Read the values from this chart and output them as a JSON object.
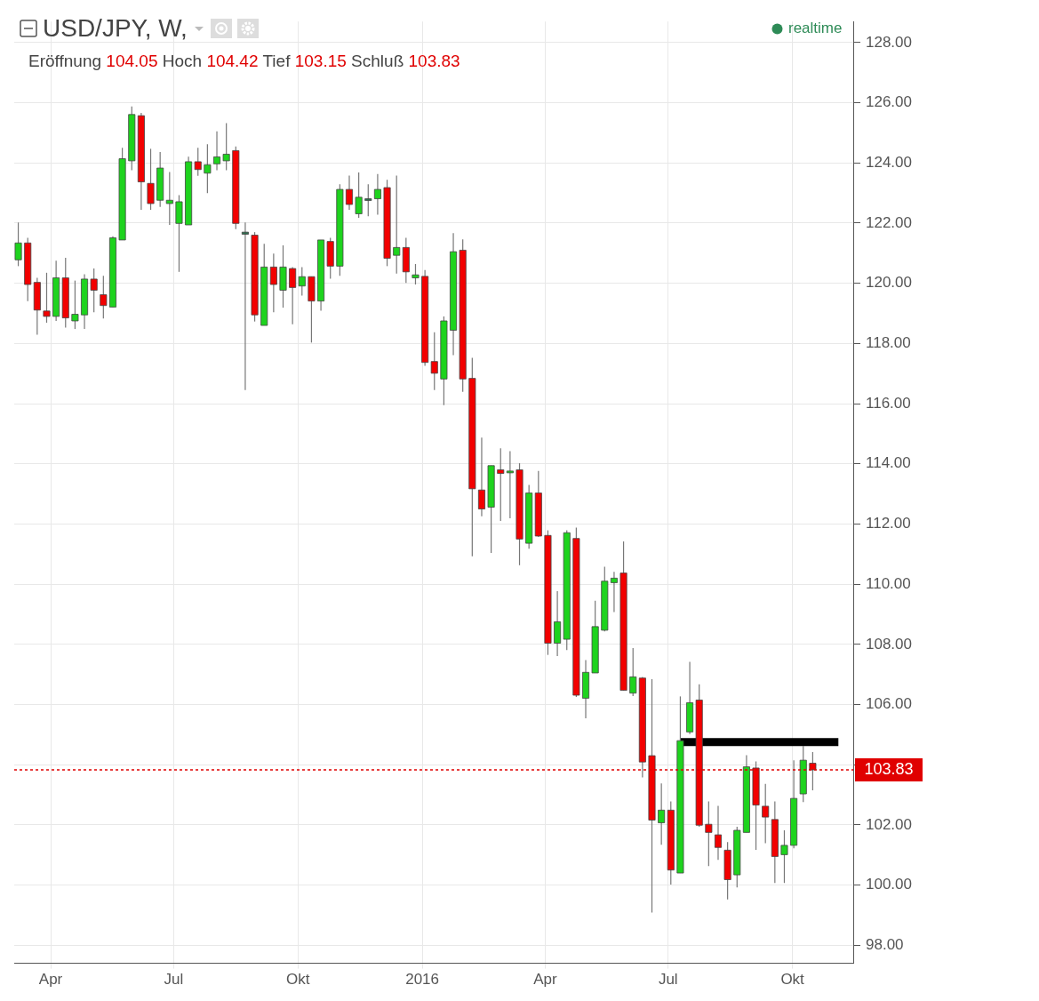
{
  "chart_data": {
    "type": "candlestick",
    "title": "USD/JPY, W,",
    "subtitle": "Eröffnung 104.05 Hoch 104.42 Tief 103.15 Schluß 103.83",
    "annotations": [
      "realtime"
    ],
    "x": [
      "2015-03-08",
      "2015-03-15",
      "2015-03-22",
      "2015-03-29",
      "2015-04-05",
      "2015-04-12",
      "2015-04-19",
      "2015-04-26",
      "2015-05-03",
      "2015-05-10",
      "2015-05-17",
      "2015-05-24",
      "2015-05-31",
      "2015-06-07",
      "2015-06-14",
      "2015-06-21",
      "2015-06-28",
      "2015-07-05",
      "2015-07-12",
      "2015-07-19",
      "2015-07-26",
      "2015-08-02",
      "2015-08-09",
      "2015-08-16",
      "2015-08-23",
      "2015-08-30",
      "2015-09-06",
      "2015-09-13",
      "2015-09-20",
      "2015-09-27",
      "2015-10-04",
      "2015-10-11",
      "2015-10-18",
      "2015-10-25",
      "2015-11-01",
      "2015-11-08",
      "2015-11-15",
      "2015-11-22",
      "2015-11-29",
      "2015-12-06",
      "2015-12-13",
      "2015-12-20",
      "2015-12-27",
      "2016-01-03",
      "2016-01-10",
      "2016-01-17",
      "2016-01-24",
      "2016-01-31",
      "2016-02-07",
      "2016-02-14",
      "2016-02-21",
      "2016-02-28",
      "2016-03-06",
      "2016-03-13",
      "2016-03-20",
      "2016-03-27",
      "2016-04-03",
      "2016-04-10",
      "2016-04-17",
      "2016-04-24",
      "2016-05-01",
      "2016-05-08",
      "2016-05-15",
      "2016-05-22",
      "2016-05-29",
      "2016-06-05",
      "2016-06-12",
      "2016-06-19",
      "2016-06-26",
      "2016-07-03",
      "2016-07-10",
      "2016-07-17",
      "2016-07-24",
      "2016-07-31",
      "2016-08-07",
      "2016-08-14",
      "2016-08-21",
      "2016-08-28",
      "2016-09-04",
      "2016-09-11",
      "2016-09-18",
      "2016-09-25",
      "2016-10-02",
      "2016-10-09",
      "2016-10-16"
    ],
    "ohlc": [
      [
        120.78,
        122.02,
        120.57,
        121.34
      ],
      [
        121.34,
        121.51,
        119.41,
        119.96
      ],
      [
        120.03,
        120.18,
        118.29,
        119.11
      ],
      [
        119.08,
        120.35,
        118.69,
        118.9
      ],
      [
        118.9,
        120.75,
        118.75,
        120.18
      ],
      [
        120.18,
        120.85,
        118.53,
        118.85
      ],
      [
        118.75,
        120.09,
        118.48,
        118.97
      ],
      [
        118.95,
        120.3,
        118.48,
        120.14
      ],
      [
        120.14,
        120.49,
        119.04,
        119.77
      ],
      [
        119.62,
        120.25,
        118.83,
        119.26
      ],
      [
        119.21,
        121.56,
        119.21,
        121.51
      ],
      [
        121.44,
        124.5,
        121.44,
        124.14
      ],
      [
        124.07,
        125.88,
        123.76,
        125.61
      ],
      [
        125.57,
        125.66,
        122.44,
        123.37
      ],
      [
        123.32,
        124.47,
        122.44,
        122.65
      ],
      [
        122.76,
        124.36,
        122.54,
        123.83
      ],
      [
        122.65,
        123.7,
        121.94,
        122.76
      ],
      [
        121.99,
        122.93,
        120.38,
        122.71
      ],
      [
        121.94,
        124.21,
        121.94,
        124.04
      ],
      [
        124.04,
        124.5,
        123.57,
        123.78
      ],
      [
        123.66,
        124.62,
        123.0,
        123.94
      ],
      [
        123.97,
        125.05,
        123.76,
        124.2
      ],
      [
        124.07,
        125.32,
        123.76,
        124.29
      ],
      [
        124.41,
        124.55,
        121.8,
        121.99
      ],
      [
        121.63,
        122.02,
        116.45,
        121.7
      ],
      [
        121.6,
        121.7,
        118.73,
        118.95
      ],
      [
        118.6,
        121.31,
        118.6,
        120.54
      ],
      [
        120.54,
        120.99,
        119.04,
        119.96
      ],
      [
        119.77,
        121.26,
        119.19,
        120.54
      ],
      [
        120.49,
        120.54,
        118.64,
        119.86
      ],
      [
        119.91,
        120.54,
        119.59,
        120.22
      ],
      [
        120.22,
        120.22,
        118.03,
        119.41
      ],
      [
        119.41,
        121.44,
        119.09,
        121.44
      ],
      [
        121.39,
        121.51,
        120.15,
        120.57
      ],
      [
        120.57,
        123.29,
        120.25,
        123.12
      ],
      [
        123.12,
        123.58,
        122.44,
        122.62
      ],
      [
        122.31,
        123.68,
        122.18,
        122.86
      ],
      [
        122.76,
        123.29,
        122.23,
        122.81
      ],
      [
        122.81,
        123.63,
        122.28,
        123.12
      ],
      [
        123.18,
        123.44,
        120.57,
        120.83
      ],
      [
        120.93,
        123.58,
        120.32,
        121.19
      ],
      [
        121.19,
        121.51,
        120.01,
        120.38
      ],
      [
        120.18,
        120.64,
        119.96,
        120.28
      ],
      [
        120.23,
        120.44,
        117.26,
        117.37
      ],
      [
        117.4,
        118.37,
        116.45,
        117.01
      ],
      [
        116.82,
        118.9,
        115.95,
        118.75
      ],
      [
        118.44,
        121.67,
        117.61,
        121.05
      ],
      [
        121.1,
        121.46,
        116.39,
        116.82
      ],
      [
        116.84,
        117.52,
        110.93,
        113.17
      ],
      [
        113.13,
        114.87,
        112.26,
        112.5
      ],
      [
        112.56,
        113.94,
        111.04,
        113.94
      ],
      [
        113.8,
        114.52,
        112.1,
        113.68
      ],
      [
        113.74,
        114.42,
        112.19,
        113.76
      ],
      [
        113.8,
        114.02,
        110.63,
        111.5
      ],
      [
        111.36,
        113.3,
        111.18,
        113.03
      ],
      [
        113.03,
        113.76,
        111.57,
        111.6
      ],
      [
        111.62,
        111.79,
        107.65,
        108.04
      ],
      [
        108.04,
        109.77,
        107.61,
        108.75
      ],
      [
        108.17,
        111.79,
        107.81,
        111.71
      ],
      [
        111.52,
        111.88,
        106.25,
        106.31
      ],
      [
        106.21,
        107.48,
        105.54,
        107.07
      ],
      [
        107.05,
        109.45,
        107.05,
        108.59
      ],
      [
        108.47,
        110.58,
        108.43,
        110.1
      ],
      [
        110.05,
        110.41,
        109.07,
        110.2
      ],
      [
        110.37,
        111.42,
        106.47,
        106.47
      ],
      [
        106.38,
        107.88,
        106.28,
        106.92
      ],
      [
        106.88,
        106.92,
        103.58,
        104.09
      ],
      [
        104.3,
        106.84,
        99.09,
        102.16
      ],
      [
        102.07,
        103.38,
        101.34,
        102.49
      ],
      [
        102.49,
        102.78,
        100.02,
        100.5
      ],
      [
        100.4,
        106.27,
        100.4,
        104.8
      ],
      [
        105.09,
        107.42,
        105.02,
        106.06
      ],
      [
        106.15,
        106.67,
        101.94,
        101.99
      ],
      [
        102.02,
        102.78,
        100.63,
        101.75
      ],
      [
        101.67,
        102.63,
        100.84,
        101.25
      ],
      [
        101.16,
        101.43,
        99.52,
        100.18
      ],
      [
        100.34,
        101.94,
        99.92,
        101.82
      ],
      [
        101.75,
        104.32,
        101.75,
        103.93
      ],
      [
        103.89,
        104.11,
        101.17,
        102.66
      ],
      [
        102.62,
        103.36,
        101.39,
        102.26
      ],
      [
        102.18,
        102.78,
        100.07,
        100.95
      ],
      [
        101.01,
        101.82,
        100.07,
        101.32
      ],
      [
        101.32,
        104.15,
        101.22,
        102.88
      ],
      [
        103.03,
        104.63,
        102.76,
        104.15
      ],
      [
        104.05,
        104.42,
        103.15,
        103.83
      ]
    ],
    "colors": [
      "#1ed31e",
      "#f20000",
      "#f20000",
      "#f20000",
      "#1ed31e",
      "#f20000",
      "#1ed31e",
      "#1ed31e",
      "#f20000",
      "#f20000",
      "#1ed31e",
      "#1ed31e",
      "#1ed31e",
      "#f20000",
      "#f20000",
      "#1ed31e",
      "#1ed31e",
      "#1ed31e",
      "#1ed31e",
      "#f20000",
      "#1ed31e",
      "#1ed31e",
      "#1ed31e",
      "#f20000",
      "#2f6f4f",
      "#f20000",
      "#1ed31e",
      "#f20000",
      "#1ed31e",
      "#f20000",
      "#1ed31e",
      "#f20000",
      "#1ed31e",
      "#f20000",
      "#1ed31e",
      "#f20000",
      "#1ed31e",
      "#2f6f4f",
      "#1ed31e",
      "#f20000",
      "#1ed31e",
      "#f20000",
      "#1ed31e",
      "#f20000",
      "#f20000",
      "#1ed31e",
      "#1ed31e",
      "#f20000",
      "#f20000",
      "#f20000",
      "#1ed31e",
      "#f20000",
      "#1ed31e",
      "#f20000",
      "#1ed31e",
      "#f20000",
      "#f20000",
      "#1ed31e",
      "#1ed31e",
      "#f20000",
      "#1ed31e",
      "#1ed31e",
      "#1ed31e",
      "#1ed31e",
      "#f20000",
      "#1ed31e",
      "#f20000",
      "#f20000",
      "#1ed31e",
      "#f20000",
      "#1ed31e",
      "#1ed31e",
      "#f20000",
      "#f20000",
      "#f20000",
      "#f20000",
      "#1ed31e",
      "#1ed31e",
      "#f20000",
      "#f20000",
      "#f20000",
      "#1ed31e",
      "#1ed31e",
      "#1ed31e",
      "#f20000"
    ],
    "series": [
      {
        "type": "line",
        "x": [
          "2016-07-10",
          "2016-11-04"
        ],
        "values": [
          104.75,
          104.75
        ],
        "color": "#000000"
      }
    ],
    "xlim": [
      "2015-03-05",
      "2016-11-15"
    ],
    "xticks": [
      {
        "value": "2015-04-01",
        "label": "Apr"
      },
      {
        "value": "2015-07-01",
        "label": "Jul"
      },
      {
        "value": "2015-10-01",
        "label": "Okt"
      },
      {
        "value": "2016-01-01",
        "label": "2016"
      },
      {
        "value": "2016-04-01",
        "label": "Apr"
      },
      {
        "value": "2016-07-01",
        "label": "Jul"
      },
      {
        "value": "2016-10-01",
        "label": "Okt"
      }
    ],
    "ylim": [
      97.4,
      128.7
    ],
    "yticks": [
      {
        "value": 98,
        "label": "98.00"
      },
      {
        "value": 100,
        "label": "100.00"
      },
      {
        "value": 102,
        "label": "102.00"
      },
      {
        "value": 104,
        "label": null
      },
      {
        "value": 106,
        "label": "106.00"
      },
      {
        "value": 108,
        "label": "108.00"
      },
      {
        "value": 110,
        "label": "110.00"
      },
      {
        "value": 112,
        "label": "112.00"
      },
      {
        "value": 114,
        "label": "114.00"
      },
      {
        "value": 116,
        "label": "116.00"
      },
      {
        "value": 118,
        "label": "118.00"
      },
      {
        "value": 120,
        "label": "120.00"
      },
      {
        "value": 122,
        "label": "122.00"
      },
      {
        "value": 124,
        "label": "124.00"
      },
      {
        "value": 126,
        "label": "126.00"
      },
      {
        "value": 128,
        "label": "128.00"
      }
    ],
    "ref_lines": [
      {
        "axis": "y",
        "value": 103.83,
        "label": "103.83",
        "color": "#e00000",
        "line_style": "dotted"
      }
    ],
    "grid": true,
    "legend": false,
    "marker": "none"
  }
}
